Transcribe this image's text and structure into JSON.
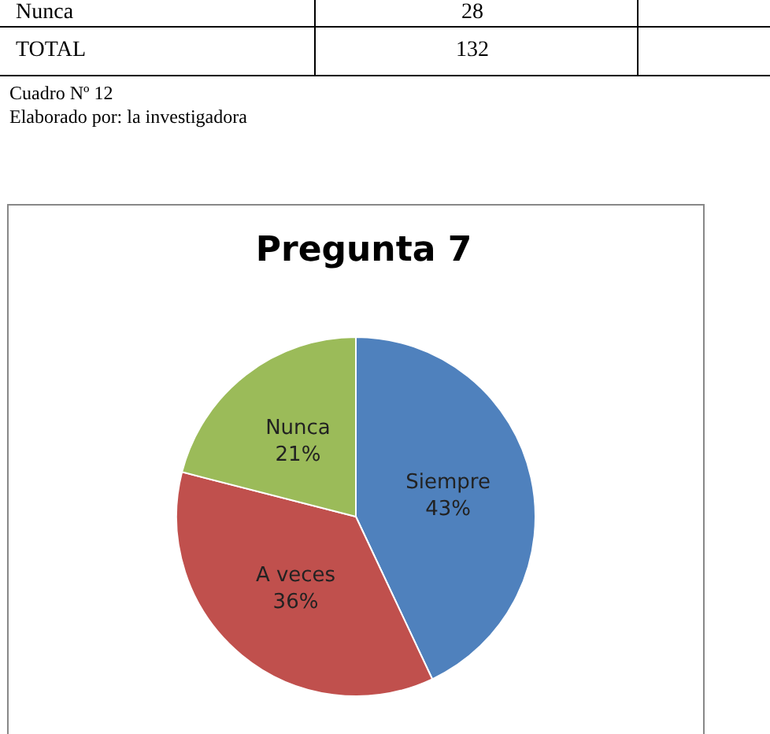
{
  "chart_data": {
    "type": "pie",
    "title": "Pregunta 7",
    "categories": [
      "Siempre",
      "A veces",
      "Nunca"
    ],
    "values": [
      43,
      36,
      21
    ],
    "value_labels": [
      "43%",
      "36%",
      "21%"
    ],
    "colors": [
      "#4f81bd",
      "#c0504d",
      "#9bbb59"
    ],
    "legend": false,
    "annotations": [
      "Nunca",
      "28",
      "TOTAL",
      "132",
      "Cuadro Nº 12",
      "Elaborado por: la investigadora"
    ]
  }
}
